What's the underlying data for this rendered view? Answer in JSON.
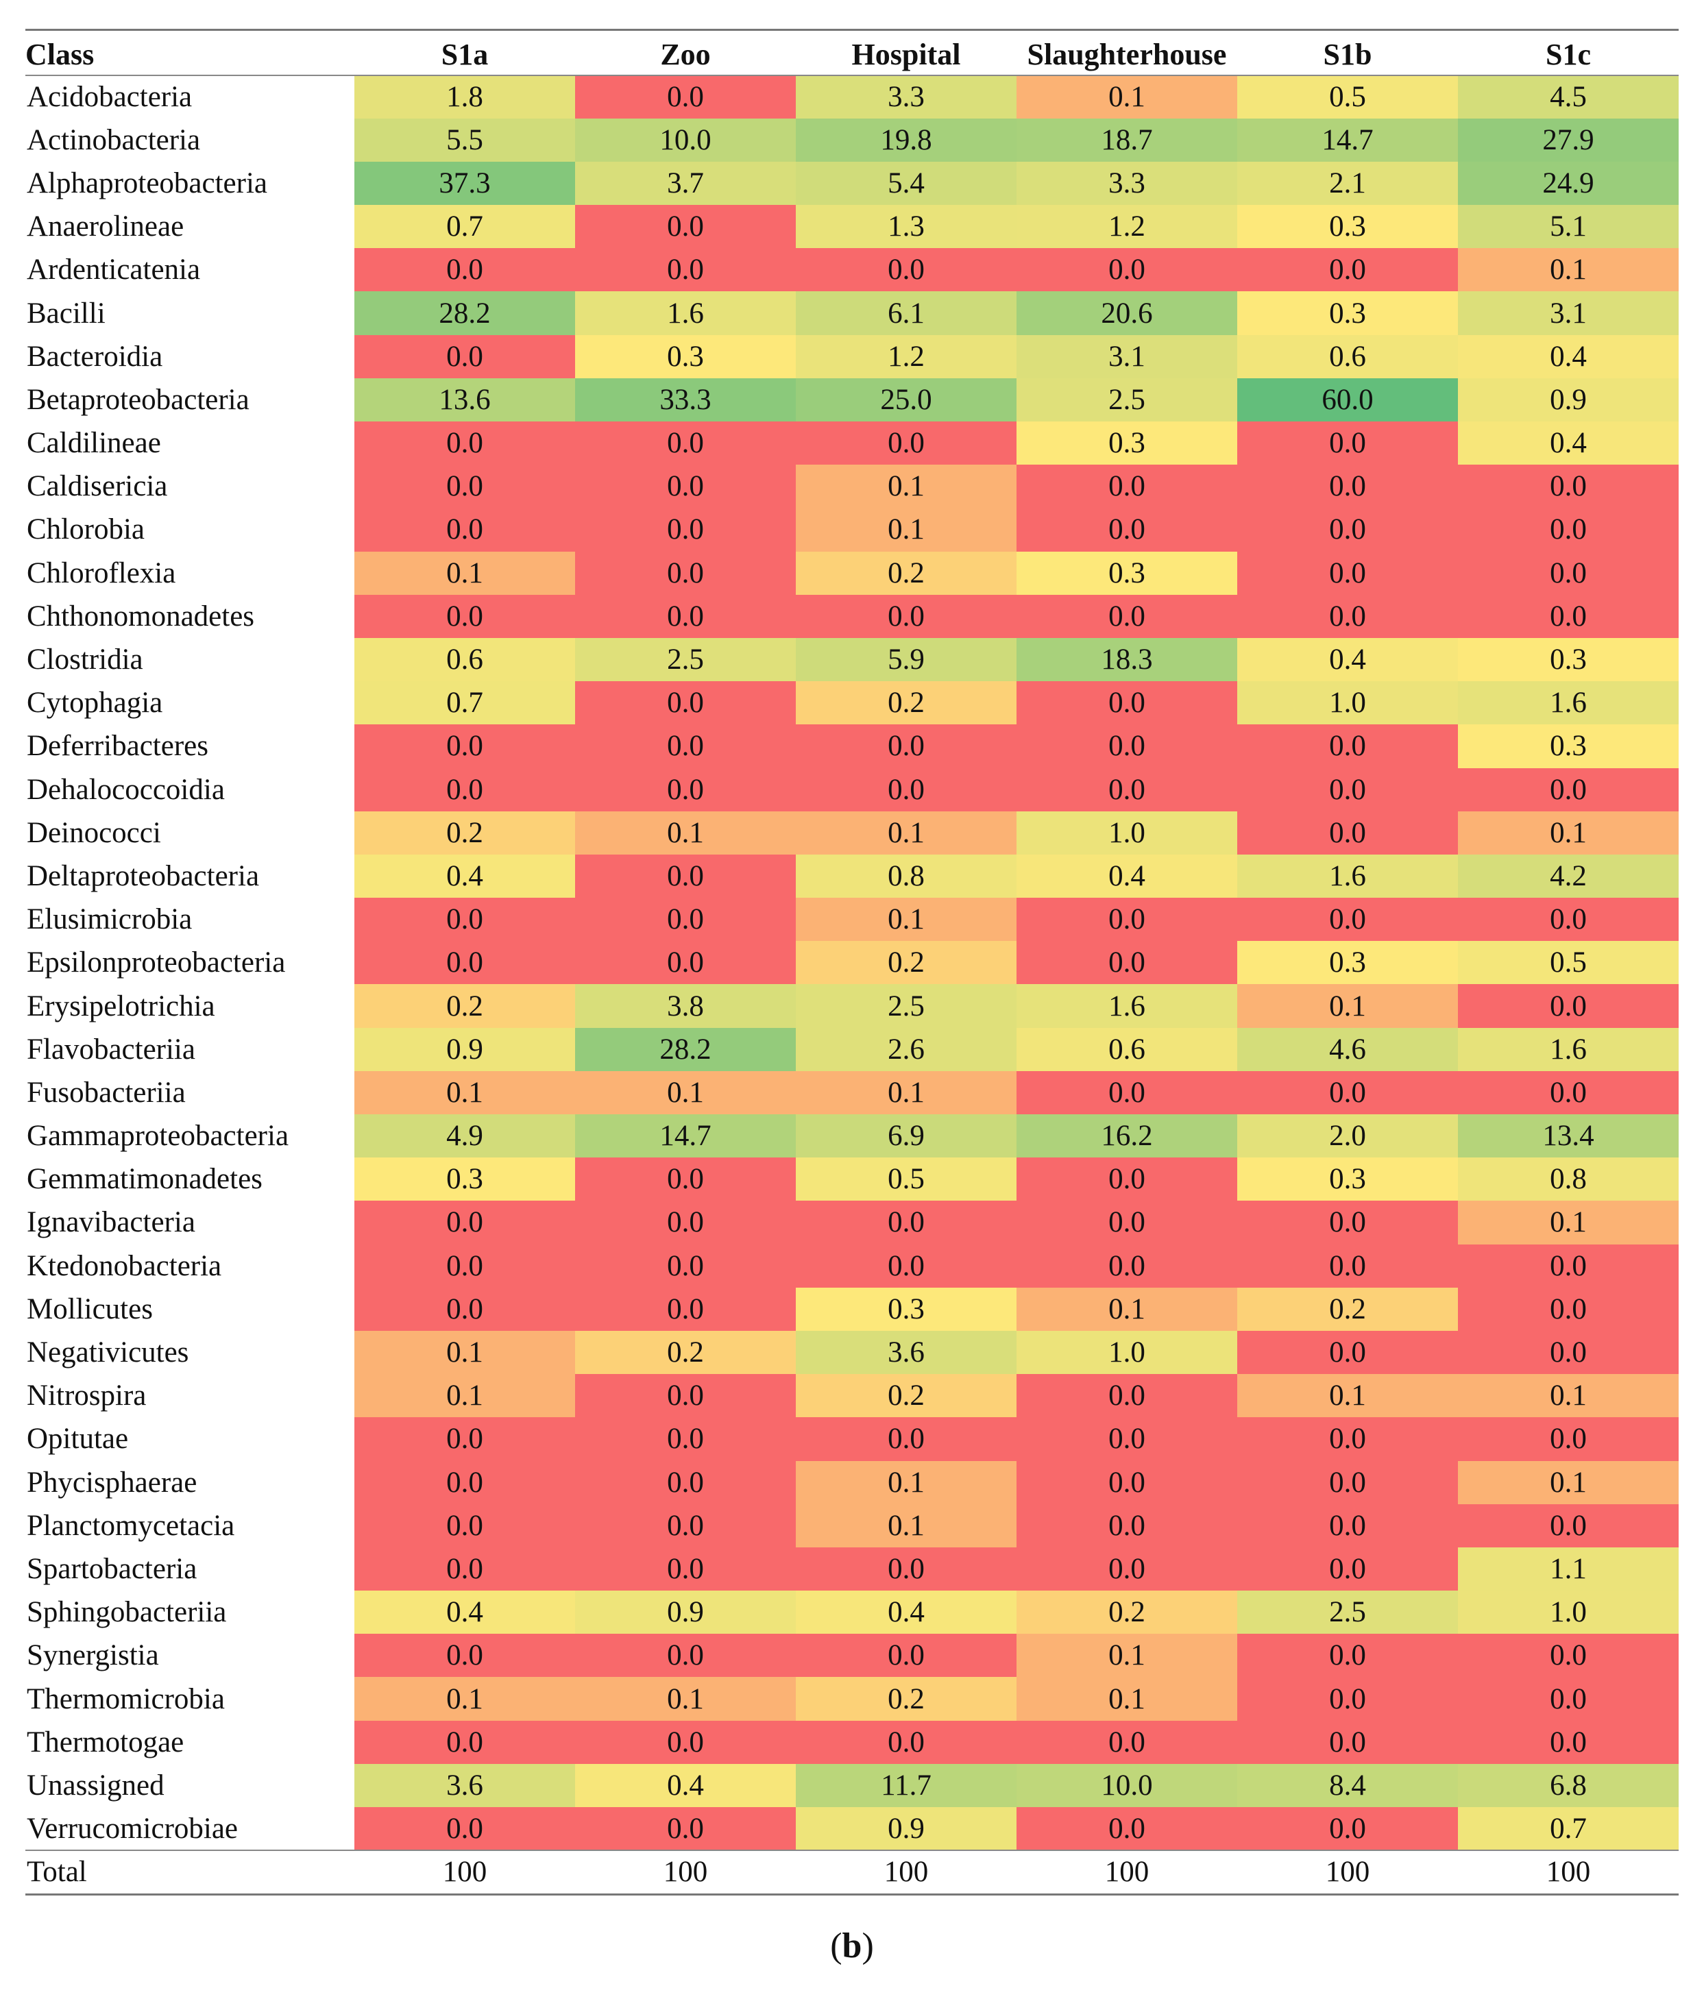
{
  "chart_data": {
    "type": "heatmap",
    "title": "",
    "corner_label": "Class",
    "columns": [
      "S1a",
      "Zoo",
      "Hospital",
      "Slaughterhouse",
      "S1b",
      "S1c"
    ],
    "rows": [
      {
        "name": "Acidobacteria",
        "values": [
          "1.8",
          "0.0",
          "3.3",
          "0.1",
          "0.5",
          "4.5"
        ]
      },
      {
        "name": "Actinobacteria",
        "values": [
          "5.5",
          "10.0",
          "19.8",
          "18.7",
          "14.7",
          "27.9"
        ]
      },
      {
        "name": "Alphaproteobacteria",
        "values": [
          "37.3",
          "3.7",
          "5.4",
          "3.3",
          "2.1",
          "24.9"
        ]
      },
      {
        "name": "Anaerolineae",
        "values": [
          "0.7",
          "0.0",
          "1.3",
          "1.2",
          "0.3",
          "5.1"
        ]
      },
      {
        "name": "Ardenticatenia",
        "values": [
          "0.0",
          "0.0",
          "0.0",
          "0.0",
          "0.0",
          "0.1"
        ]
      },
      {
        "name": "Bacilli",
        "values": [
          "28.2",
          "1.6",
          "6.1",
          "20.6",
          "0.3",
          "3.1"
        ]
      },
      {
        "name": "Bacteroidia",
        "values": [
          "0.0",
          "0.3",
          "1.2",
          "3.1",
          "0.6",
          "0.4"
        ]
      },
      {
        "name": "Betaproteobacteria",
        "values": [
          "13.6",
          "33.3",
          "25.0",
          "2.5",
          "60.0",
          "0.9"
        ]
      },
      {
        "name": "Caldilineae",
        "values": [
          "0.0",
          "0.0",
          "0.0",
          "0.3",
          "0.0",
          "0.4"
        ]
      },
      {
        "name": "Caldisericia",
        "values": [
          "0.0",
          "0.0",
          "0.1",
          "0.0",
          "0.0",
          "0.0"
        ]
      },
      {
        "name": "Chlorobia",
        "values": [
          "0.0",
          "0.0",
          "0.1",
          "0.0",
          "0.0",
          "0.0"
        ]
      },
      {
        "name": "Chloroflexia",
        "values": [
          "0.1",
          "0.0",
          "0.2",
          "0.3",
          "0.0",
          "0.0"
        ]
      },
      {
        "name": "Chthonomonadetes",
        "values": [
          "0.0",
          "0.0",
          "0.0",
          "0.0",
          "0.0",
          "0.0"
        ]
      },
      {
        "name": "Clostridia",
        "values": [
          "0.6",
          "2.5",
          "5.9",
          "18.3",
          "0.4",
          "0.3"
        ]
      },
      {
        "name": "Cytophagia",
        "values": [
          "0.7",
          "0.0",
          "0.2",
          "0.0",
          "1.0",
          "1.6"
        ]
      },
      {
        "name": "Deferribacteres",
        "values": [
          "0.0",
          "0.0",
          "0.0",
          "0.0",
          "0.0",
          "0.3"
        ]
      },
      {
        "name": "Dehalococcoidia",
        "values": [
          "0.0",
          "0.0",
          "0.0",
          "0.0",
          "0.0",
          "0.0"
        ]
      },
      {
        "name": "Deinococci",
        "values": [
          "0.2",
          "0.1",
          "0.1",
          "1.0",
          "0.0",
          "0.1"
        ]
      },
      {
        "name": "Deltaproteobacteria",
        "values": [
          "0.4",
          "0.0",
          "0.8",
          "0.4",
          "1.6",
          "4.2"
        ]
      },
      {
        "name": "Elusimicrobia",
        "values": [
          "0.0",
          "0.0",
          "0.1",
          "0.0",
          "0.0",
          "0.0"
        ]
      },
      {
        "name": "Epsilonproteobacteria",
        "values": [
          "0.0",
          "0.0",
          "0.2",
          "0.0",
          "0.3",
          "0.5"
        ]
      },
      {
        "name": "Erysipelotrichia",
        "values": [
          "0.2",
          "3.8",
          "2.5",
          "1.6",
          "0.1",
          "0.0"
        ]
      },
      {
        "name": "Flavobacteriia",
        "values": [
          "0.9",
          "28.2",
          "2.6",
          "0.6",
          "4.6",
          "1.6"
        ]
      },
      {
        "name": "Fusobacteriia",
        "values": [
          "0.1",
          "0.1",
          "0.1",
          "0.0",
          "0.0",
          "0.0"
        ]
      },
      {
        "name": "Gammaproteobacteria",
        "values": [
          "4.9",
          "14.7",
          "6.9",
          "16.2",
          "2.0",
          "13.4"
        ]
      },
      {
        "name": "Gemmatimonadetes",
        "values": [
          "0.3",
          "0.0",
          "0.5",
          "0.0",
          "0.3",
          "0.8"
        ]
      },
      {
        "name": "Ignavibacteria",
        "values": [
          "0.0",
          "0.0",
          "0.0",
          "0.0",
          "0.0",
          "0.1"
        ]
      },
      {
        "name": "Ktedonobacteria",
        "values": [
          "0.0",
          "0.0",
          "0.0",
          "0.0",
          "0.0",
          "0.0"
        ]
      },
      {
        "name": "Mollicutes",
        "values": [
          "0.0",
          "0.0",
          "0.3",
          "0.1",
          "0.2",
          "0.0"
        ]
      },
      {
        "name": "Negativicutes",
        "values": [
          "0.1",
          "0.2",
          "3.6",
          "1.0",
          "0.0",
          "0.0"
        ]
      },
      {
        "name": "Nitrospira",
        "values": [
          "0.1",
          "0.0",
          "0.2",
          "0.0",
          "0.1",
          "0.1"
        ]
      },
      {
        "name": "Opitutae",
        "values": [
          "0.0",
          "0.0",
          "0.0",
          "0.0",
          "0.0",
          "0.0"
        ]
      },
      {
        "name": "Phycisphaerae",
        "values": [
          "0.0",
          "0.0",
          "0.1",
          "0.0",
          "0.0",
          "0.1"
        ]
      },
      {
        "name": "Planctomycetacia",
        "values": [
          "0.0",
          "0.0",
          "0.1",
          "0.0",
          "0.0",
          "0.0"
        ]
      },
      {
        "name": "Spartobacteria",
        "values": [
          "0.0",
          "0.0",
          "0.0",
          "0.0",
          "0.0",
          "1.1"
        ]
      },
      {
        "name": "Sphingobacteriia",
        "values": [
          "0.4",
          "0.9",
          "0.4",
          "0.2",
          "2.5",
          "1.0"
        ]
      },
      {
        "name": "Synergistia",
        "values": [
          "0.0",
          "0.0",
          "0.0",
          "0.1",
          "0.0",
          "0.0"
        ]
      },
      {
        "name": "Thermomicrobia",
        "values": [
          "0.1",
          "0.1",
          "0.2",
          "0.1",
          "0.0",
          "0.0"
        ]
      },
      {
        "name": "Thermotogae",
        "values": [
          "0.0",
          "0.0",
          "0.0",
          "0.0",
          "0.0",
          "0.0"
        ]
      },
      {
        "name": "Unassigned",
        "values": [
          "3.6",
          "0.4",
          "11.7",
          "10.0",
          "8.4",
          "6.8"
        ]
      },
      {
        "name": "Verrucomicrobiae",
        "values": [
          "0.0",
          "0.0",
          "0.9",
          "0.0",
          "0.0",
          "0.7"
        ]
      }
    ],
    "total": {
      "name": "Total",
      "values": [
        "100",
        "100",
        "100",
        "100",
        "100",
        "100"
      ]
    },
    "color_scale": {
      "low": "#f8696b",
      "mid": "#fde87a",
      "high": "#63be7b",
      "max_value": 60.0
    }
  },
  "caption": {
    "open": "(",
    "letter": "b",
    "close": ")"
  }
}
